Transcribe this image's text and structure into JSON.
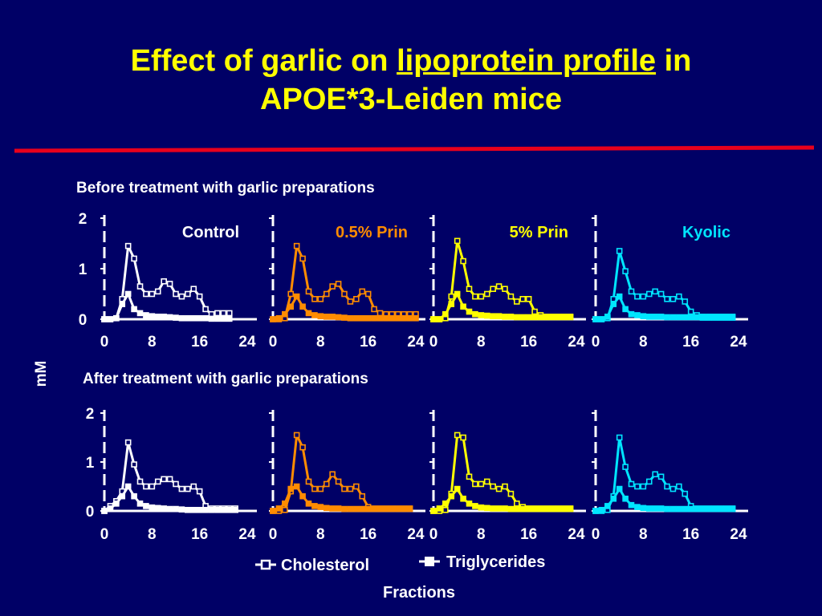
{
  "slide": {
    "title_part1": "Effect of garlic on ",
    "title_part2": "lipoprotein profile",
    "title_part3": " in",
    "title_line2": "APOE*3-Leiden mice",
    "accent_rule_color": "#e8001c"
  },
  "colors": {
    "background": "#000066",
    "title": "#ffff00",
    "axis": "#ffffff",
    "Control": "#ffffff",
    "0.5% Prin": "#ff8c00",
    "5% Prin": "#ffff00",
    "Kyolic": "#00e5ff"
  },
  "chart_data": {
    "type": "line",
    "ylabel": "mM",
    "xlabel": "Fractions",
    "xlim": [
      0,
      24
    ],
    "ylim": [
      0,
      2
    ],
    "yticks": [
      0,
      1,
      2
    ],
    "xticks": [
      0,
      8,
      16,
      24
    ],
    "legend": {
      "placement": "bottom-center",
      "entries": [
        {
          "name": "Cholesterol",
          "marker": "open-square"
        },
        {
          "name": "Triglycerides",
          "marker": "filled-square"
        }
      ]
    },
    "x": [
      0,
      1,
      2,
      3,
      4,
      5,
      6,
      7,
      8,
      9,
      10,
      11,
      12,
      13,
      14,
      15,
      16,
      17,
      18,
      19,
      20,
      21,
      22,
      23,
      24
    ],
    "rows": [
      {
        "label": "Before treatment with garlic preparations",
        "panels": [
          {
            "label": "Control",
            "series": [
              {
                "name": "Cholesterol",
                "values": [
                  0,
                  0,
                  0.02,
                  0.4,
                  1.45,
                  1.2,
                  0.65,
                  0.5,
                  0.5,
                  0.55,
                  0.75,
                  0.7,
                  0.5,
                  0.45,
                  0.5,
                  0.6,
                  0.45,
                  0.2,
                  0.1,
                  0.12,
                  0.12,
                  0.12,
                  null,
                  null,
                  null
                ]
              },
              {
                "name": "Triglycerides",
                "values": [
                  0,
                  0,
                  0.02,
                  0.3,
                  0.5,
                  0.2,
                  0.12,
                  0.08,
                  0.06,
                  0.05,
                  0.05,
                  0.04,
                  0.03,
                  0.02,
                  0.02,
                  0.02,
                  0.02,
                  0.02,
                  0.01,
                  0.01,
                  0.01,
                  0.01,
                  null,
                  null,
                  null
                ]
              }
            ]
          },
          {
            "label": "0.5% Prin",
            "series": [
              {
                "name": "Cholesterol",
                "values": [
                  0,
                  0,
                  0.02,
                  0.5,
                  1.45,
                  1.2,
                  0.55,
                  0.4,
                  0.4,
                  0.5,
                  0.65,
                  0.7,
                  0.5,
                  0.35,
                  0.4,
                  0.55,
                  0.5,
                  0.2,
                  0.12,
                  0.1,
                  0.1,
                  0.1,
                  0.1,
                  0.1,
                  0.1
                ]
              },
              {
                "name": "Triglycerides",
                "values": [
                  0,
                  0.02,
                  0.1,
                  0.25,
                  0.45,
                  0.25,
                  0.12,
                  0.08,
                  0.06,
                  0.05,
                  0.05,
                  0.04,
                  0.03,
                  0.02,
                  0.02,
                  0.02,
                  0.02,
                  0.02,
                  0.02,
                  0.02,
                  0.02,
                  0.02,
                  0.02,
                  0.02,
                  0.02
                ]
              }
            ]
          },
          {
            "label": "5% Prin",
            "series": [
              {
                "name": "Cholesterol",
                "values": [
                  0,
                  0,
                  0.02,
                  0.45,
                  1.55,
                  1.15,
                  0.6,
                  0.45,
                  0.45,
                  0.5,
                  0.6,
                  0.65,
                  0.6,
                  0.45,
                  0.35,
                  0.4,
                  0.4,
                  0.15,
                  0.08,
                  0.05,
                  0.05,
                  0.05,
                  0.05,
                  0.05,
                  null
                ]
              },
              {
                "name": "Triglycerides",
                "values": [
                  0,
                  0,
                  0.1,
                  0.3,
                  0.5,
                  0.25,
                  0.15,
                  0.1,
                  0.08,
                  0.07,
                  0.06,
                  0.06,
                  0.05,
                  0.05,
                  0.04,
                  0.04,
                  0.04,
                  0.04,
                  0.04,
                  0.04,
                  0.04,
                  0.04,
                  0.04,
                  0.04,
                  null
                ]
              }
            ]
          },
          {
            "label": "Kyolic",
            "series": [
              {
                "name": "Cholesterol",
                "values": [
                  0,
                  0,
                  0.02,
                  0.4,
                  1.35,
                  0.95,
                  0.55,
                  0.45,
                  0.45,
                  0.5,
                  0.55,
                  0.5,
                  0.4,
                  0.4,
                  0.45,
                  0.35,
                  0.15,
                  0.08,
                  0.05,
                  0.05,
                  0.05,
                  0.05,
                  0.05,
                  0.05,
                  null
                ]
              },
              {
                "name": "Triglycerides",
                "values": [
                  0,
                  0,
                  0.05,
                  0.3,
                  0.45,
                  0.2,
                  0.1,
                  0.08,
                  0.06,
                  0.05,
                  0.05,
                  0.05,
                  0.04,
                  0.04,
                  0.04,
                  0.04,
                  0.04,
                  0.04,
                  0.03,
                  0.03,
                  0.03,
                  0.03,
                  0.03,
                  0.03,
                  null
                ]
              }
            ]
          }
        ]
      },
      {
        "label": "After treatment with garlic preparations",
        "panels": [
          {
            "label": "",
            "series": [
              {
                "name": "Cholesterol",
                "values": [
                  0,
                  0.1,
                  0.2,
                  0.4,
                  1.4,
                  0.95,
                  0.6,
                  0.5,
                  0.5,
                  0.6,
                  0.65,
                  0.65,
                  0.55,
                  0.45,
                  0.45,
                  0.5,
                  0.4,
                  0.1,
                  0.05,
                  0.05,
                  0.05,
                  0.05,
                  0.05,
                  null,
                  null
                ]
              },
              {
                "name": "Triglycerides",
                "values": [
                  0,
                  0.05,
                  0.15,
                  0.3,
                  0.5,
                  0.3,
                  0.15,
                  0.1,
                  0.07,
                  0.06,
                  0.05,
                  0.04,
                  0.04,
                  0.03,
                  0.02,
                  0.02,
                  0.02,
                  0.02,
                  0.02,
                  0.02,
                  0.02,
                  0.02,
                  0.02,
                  null,
                  null
                ]
              }
            ]
          },
          {
            "label": "",
            "series": [
              {
                "name": "Cholesterol",
                "values": [
                  0,
                  0,
                  0.02,
                  0.4,
                  1.55,
                  1.3,
                  0.6,
                  0.45,
                  0.45,
                  0.55,
                  0.75,
                  0.6,
                  0.45,
                  0.45,
                  0.5,
                  0.3,
                  0.08,
                  0.05,
                  0.05,
                  0.05,
                  0.05,
                  0.05,
                  0.05,
                  0.05,
                  null
                ]
              },
              {
                "name": "Triglycerides",
                "values": [
                  0,
                  0.05,
                  0.15,
                  0.45,
                  0.5,
                  0.3,
                  0.15,
                  0.1,
                  0.08,
                  0.06,
                  0.05,
                  0.05,
                  0.04,
                  0.04,
                  0.04,
                  0.04,
                  0.04,
                  0.04,
                  0.04,
                  0.04,
                  0.04,
                  0.04,
                  0.04,
                  0.04,
                  null
                ]
              }
            ]
          },
          {
            "label": "",
            "series": [
              {
                "name": "Cholesterol",
                "values": [
                  0,
                  0,
                  0.02,
                  0.35,
                  1.55,
                  1.5,
                  0.7,
                  0.55,
                  0.55,
                  0.6,
                  0.5,
                  0.45,
                  0.5,
                  0.35,
                  0.15,
                  0.08,
                  0.05,
                  0.05,
                  0.05,
                  0.05,
                  0.05,
                  0.05,
                  0.05,
                  0.05,
                  null
                ]
              },
              {
                "name": "Triglycerides",
                "values": [
                  0,
                  0.05,
                  0.15,
                  0.3,
                  0.45,
                  0.25,
                  0.15,
                  0.1,
                  0.07,
                  0.06,
                  0.05,
                  0.05,
                  0.05,
                  0.04,
                  0.04,
                  0.04,
                  0.04,
                  0.04,
                  0.04,
                  0.04,
                  0.04,
                  0.04,
                  0.04,
                  0.04,
                  null
                ]
              }
            ]
          },
          {
            "label": "",
            "series": [
              {
                "name": "Cholesterol",
                "values": [
                  0,
                  0,
                  0.02,
                  0.3,
                  1.5,
                  0.9,
                  0.55,
                  0.5,
                  0.5,
                  0.6,
                  0.75,
                  0.7,
                  0.5,
                  0.45,
                  0.5,
                  0.35,
                  0.1,
                  0.05,
                  0.05,
                  0.05,
                  0.05,
                  0.05,
                  0.05,
                  0.05,
                  null
                ]
              },
              {
                "name": "Triglycerides",
                "values": [
                  0,
                  0.02,
                  0.1,
                  0.25,
                  0.45,
                  0.25,
                  0.12,
                  0.08,
                  0.06,
                  0.05,
                  0.05,
                  0.05,
                  0.04,
                  0.04,
                  0.04,
                  0.04,
                  0.04,
                  0.04,
                  0.04,
                  0.04,
                  0.04,
                  0.04,
                  0.04,
                  0.04,
                  null
                ]
              }
            ]
          }
        ]
      }
    ]
  }
}
